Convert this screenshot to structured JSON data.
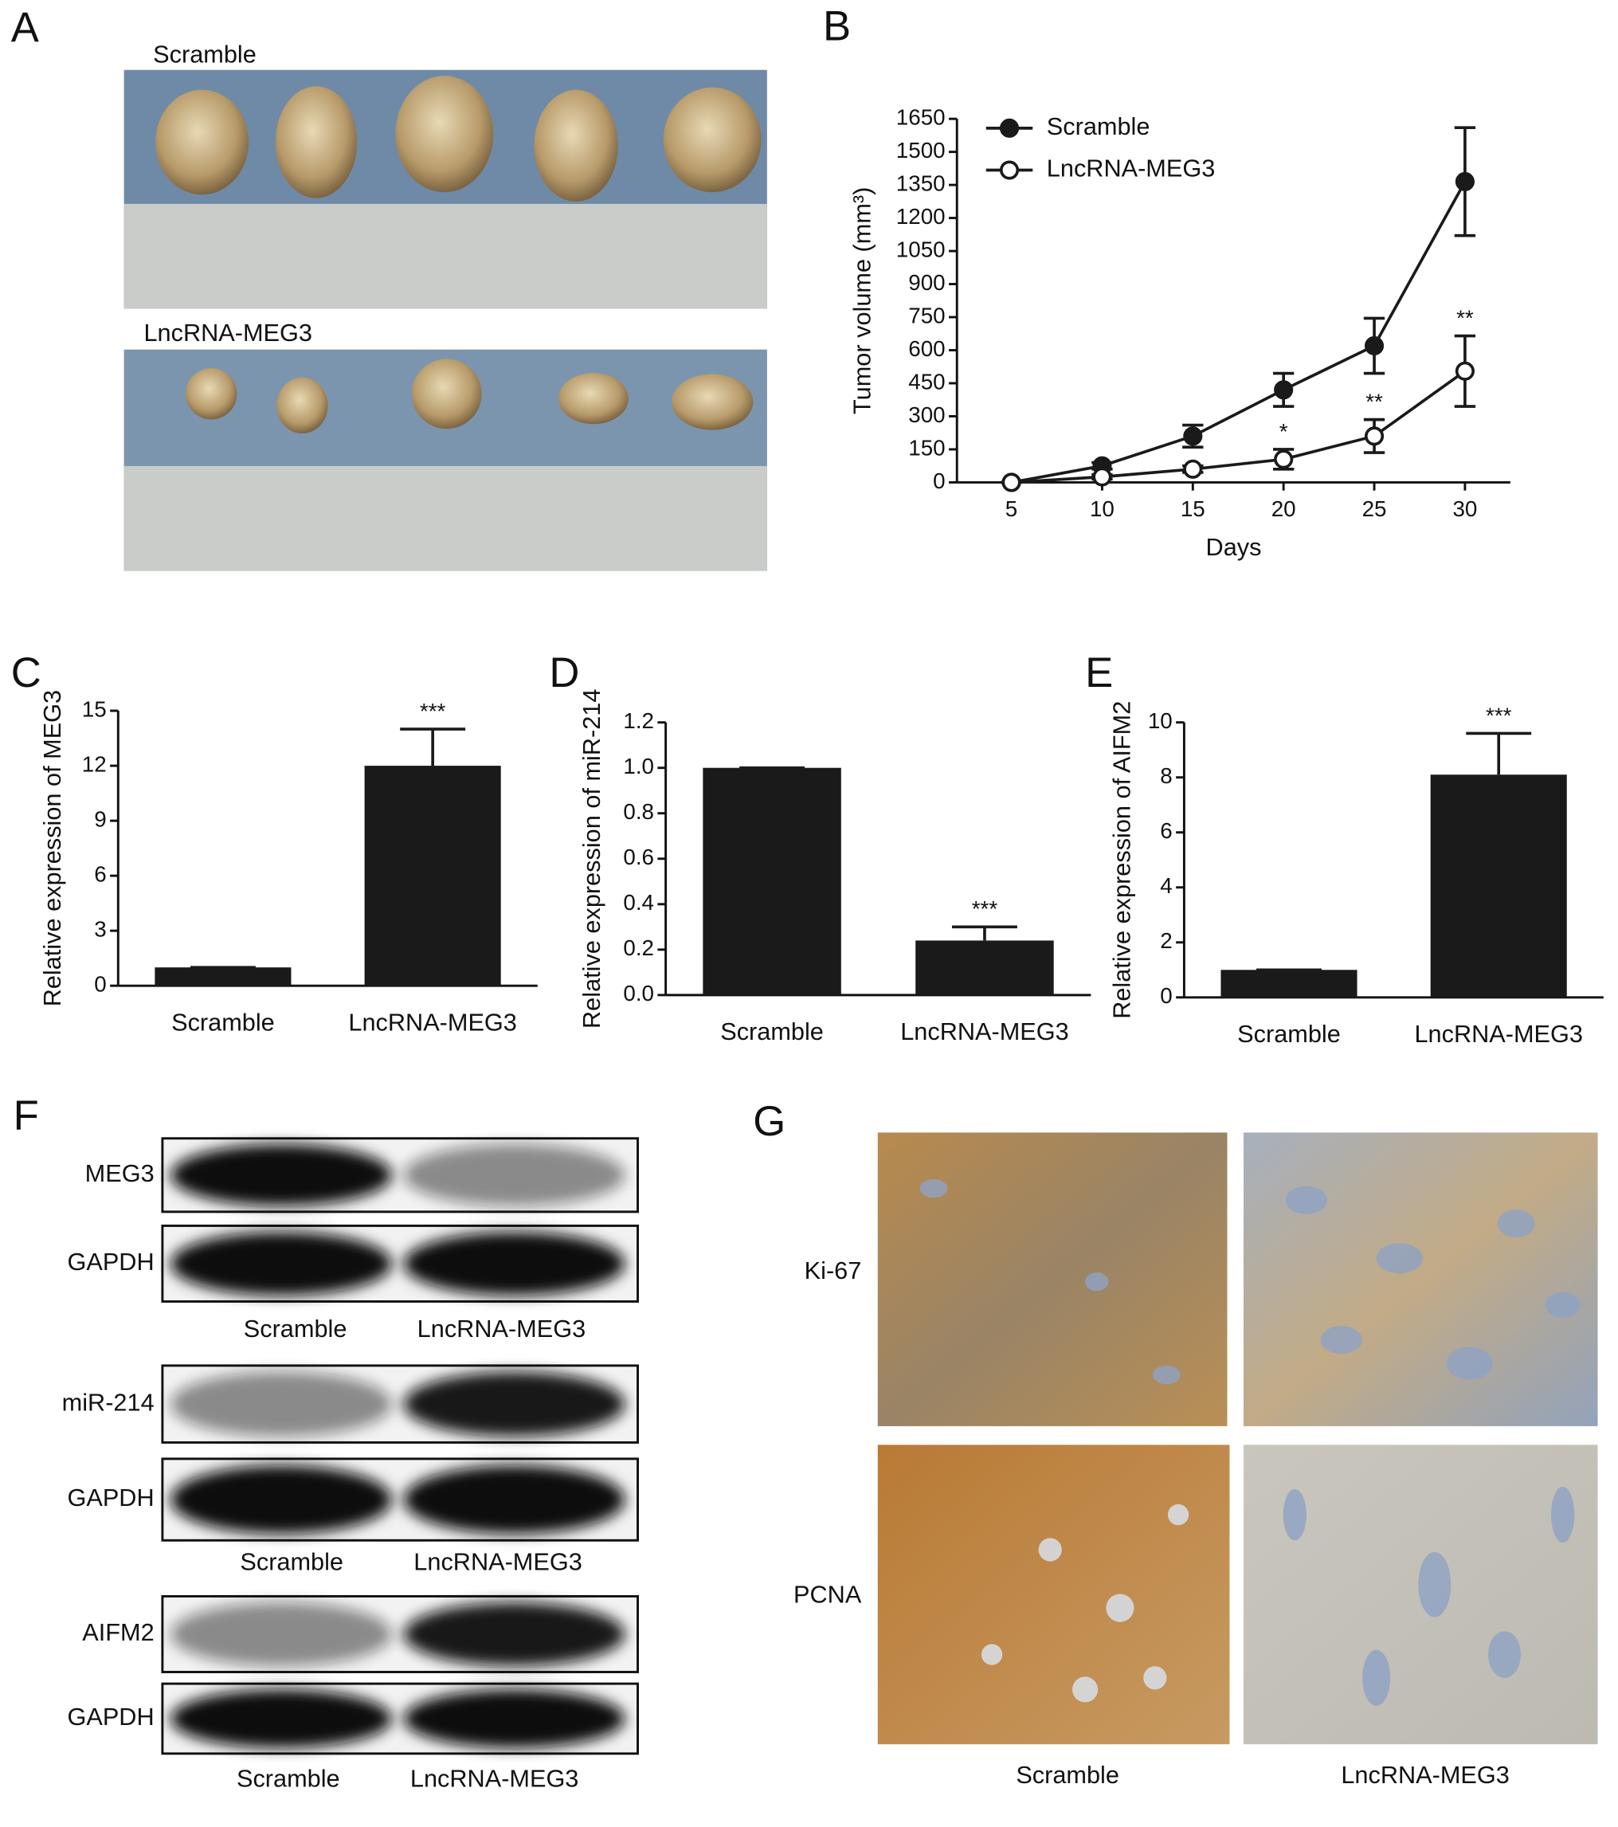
{
  "chart_data": [
    {
      "panel": "B",
      "type": "line",
      "x": [
        5,
        10,
        15,
        20,
        25,
        30
      ],
      "xlim": [
        2,
        32.5
      ],
      "xticks": [
        5,
        10,
        15,
        20,
        25,
        30
      ],
      "ylim": [
        0,
        1650
      ],
      "yticks": [
        0,
        150,
        300,
        450,
        600,
        750,
        900,
        1050,
        1200,
        1350,
        1500,
        1650
      ],
      "xlabel": "Days",
      "ylabel": "Tumor volume (mm³)",
      "legend": "upper left",
      "series": [
        {
          "name": "Scramble",
          "color": "#1a1a1a",
          "marker": "filled",
          "values": [
            0,
            75,
            210,
            420,
            620,
            1365
          ],
          "errors": [
            0,
            15,
            50,
            75,
            125,
            245
          ]
        },
        {
          "name": "LncRNA-MEG3",
          "color": "#1a1a1a",
          "marker": "open",
          "values": [
            0,
            25,
            60,
            105,
            210,
            505
          ],
          "errors": [
            0,
            10,
            15,
            45,
            75,
            160
          ],
          "significance": [
            null,
            null,
            null,
            "*",
            "**",
            "**"
          ]
        }
      ]
    },
    {
      "panel": "C",
      "type": "bar",
      "categories": [
        "Scramble",
        "LncRNA-MEG3"
      ],
      "values": [
        1,
        12
      ],
      "errors": [
        0,
        2
      ],
      "significance": [
        null,
        "***"
      ],
      "color": "#1a1a1a",
      "ylim": [
        0,
        15
      ],
      "yticks": [
        0,
        3,
        6,
        9,
        12,
        15
      ],
      "ylabel": "Relative expression of MEG3"
    },
    {
      "panel": "D",
      "type": "bar",
      "categories": [
        "Scramble",
        "LncRNA-MEG3"
      ],
      "values": [
        1,
        0.24
      ],
      "errors": [
        0,
        0.06
      ],
      "significance": [
        null,
        "***"
      ],
      "color": "#1a1a1a",
      "ylim": [
        0,
        1.2
      ],
      "yticks": [
        {
          "value": 0,
          "label": "0.0"
        },
        0.2,
        0.4,
        0.6,
        0.8,
        {
          "value": 1,
          "label": "1.0"
        },
        1.2
      ],
      "ylabel": "Relative expression of miR-214"
    },
    {
      "panel": "E",
      "type": "bar",
      "categories": [
        "Scramble",
        "LncRNA-MEG3"
      ],
      "values": [
        1,
        8.1
      ],
      "errors": [
        0,
        1.5
      ],
      "significance": [
        null,
        "***"
      ],
      "color": "#1a1a1a",
      "ylim": [
        0,
        10
      ],
      "yticks": [
        0,
        2,
        4,
        6,
        8,
        10
      ],
      "ylabel": "Relative expression of AIFM2"
    }
  ],
  "panel_a": {
    "label": "A",
    "groups": [
      "Scramble",
      "LncRNA-MEG3"
    ]
  },
  "panel_f": {
    "label": "F",
    "blots": [
      {
        "target": "MEG3",
        "control": "GAPDH",
        "lanes": [
          "Scramble",
          "LncRNA-MEG3"
        ]
      },
      {
        "target": "miR-214",
        "control": "GAPDH",
        "lanes": [
          "Scramble",
          "LncRNA-MEG3"
        ]
      },
      {
        "target": "AIFM2",
        "control": "GAPDH",
        "lanes": [
          "Scramble",
          "LncRNA-MEG3"
        ]
      }
    ]
  },
  "panel_g": {
    "label": "G",
    "rows": [
      "Ki-67",
      "PCNA"
    ],
    "columns": [
      "Scramble",
      "LncRNA-MEG3"
    ]
  }
}
